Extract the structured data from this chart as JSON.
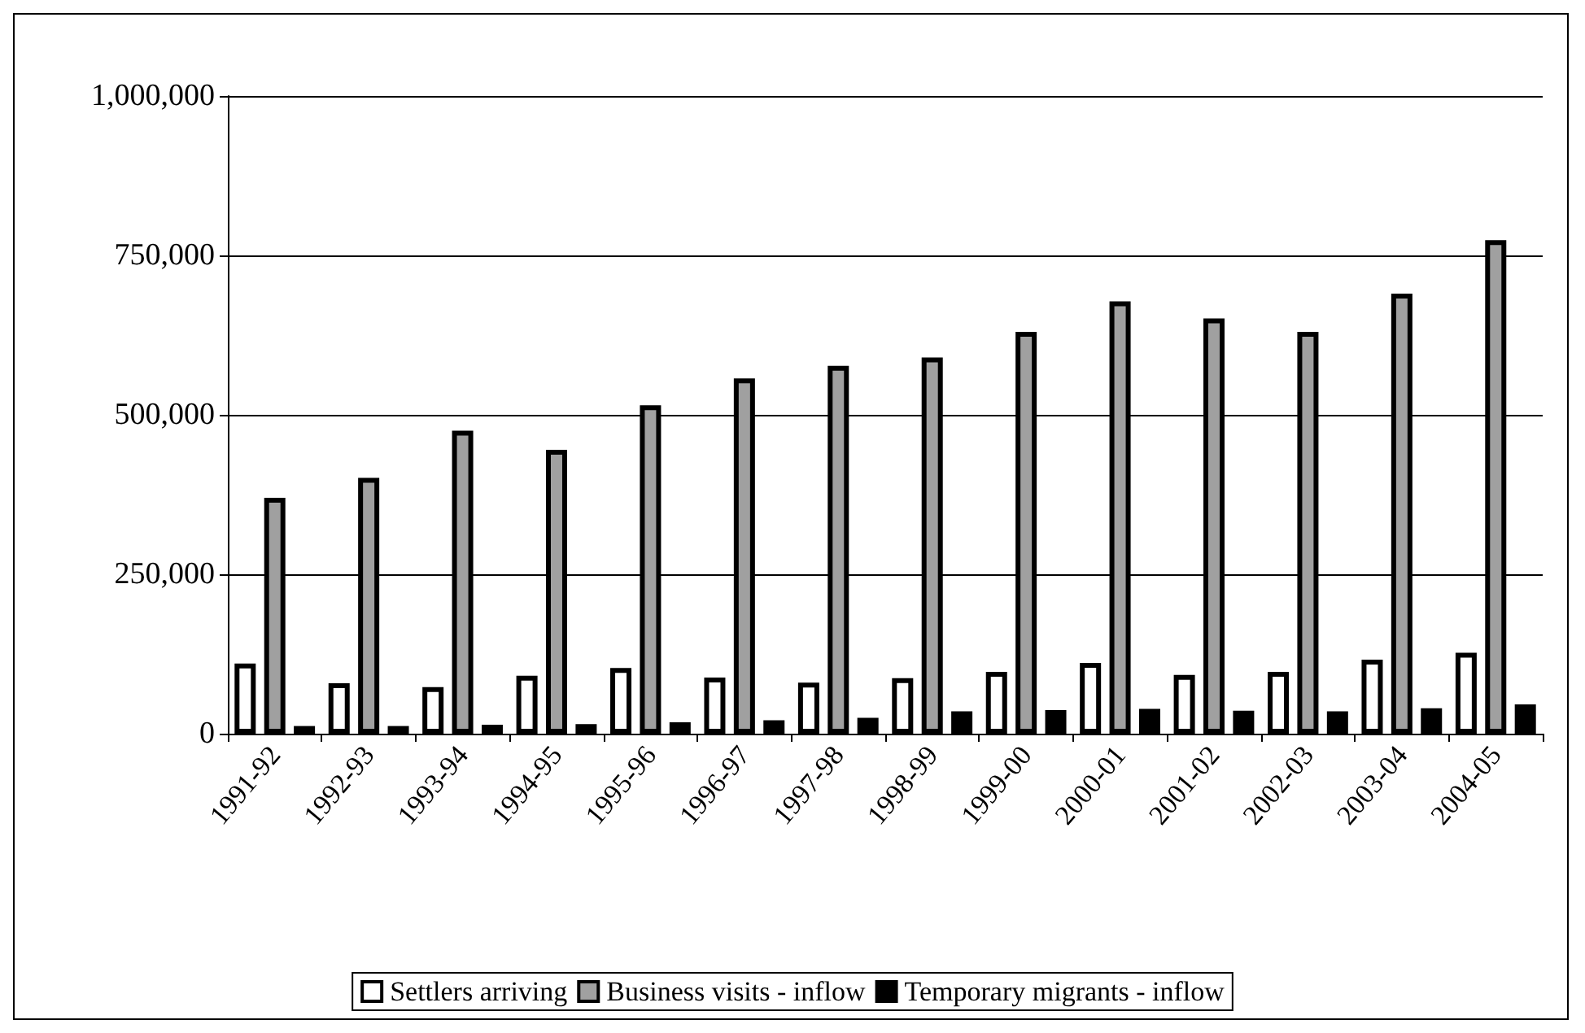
{
  "chart_data": {
    "type": "bar",
    "categories": [
      "1991-92",
      "1992-93",
      "1993-94",
      "1994-95",
      "1995-96",
      "1996-97",
      "1997-98",
      "1998-99",
      "1999-00",
      "2000-01",
      "2001-02",
      "2002-03",
      "2003-04",
      "2004-05"
    ],
    "series": [
      {
        "name": "Settlers arriving",
        "color": "#ffffff",
        "values": [
          110000,
          79000,
          73000,
          91000,
          103000,
          88000,
          80000,
          87000,
          97000,
          111000,
          92000,
          97000,
          116000,
          127000
        ]
      },
      {
        "name": "Business visits - inflow",
        "color": "#a0a0a0",
        "values": [
          370000,
          401000,
          475000,
          445000,
          515000,
          557000,
          577000,
          590000,
          630000,
          678000,
          651000,
          630000,
          690000,
          774000
        ]
      },
      {
        "name": "Temporary migrants - inflow",
        "color": "#000000",
        "values": [
          12000,
          12000,
          14000,
          15000,
          18000,
          21000,
          25000,
          35000,
          37000,
          39000,
          36000,
          35000,
          40000,
          46000
        ]
      }
    ],
    "ylim": [
      0,
      1000000
    ],
    "yticks": [
      0,
      {
        "value": 250000,
        "label": "250,000"
      },
      {
        "value": 500000,
        "label": "500,000"
      },
      {
        "value": 750000,
        "label": "750,000"
      },
      {
        "value": 1000000,
        "label": "1,000,000"
      }
    ],
    "grid": "y",
    "legend": "bottom"
  }
}
